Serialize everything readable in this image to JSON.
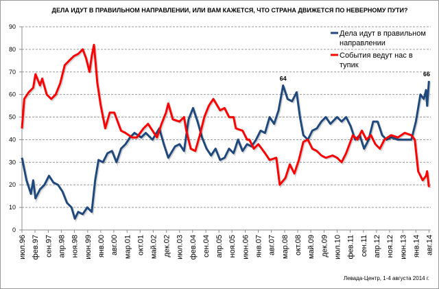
{
  "chart_data": {
    "type": "line",
    "title": "ДЕЛА ИДУТ В ПРАВИЛЬНОМ НАПРАВЛЕНИИ, ИЛИ ВАМ КАЖЕТСЯ, ЧТО СТРАНА ДВИЖЕТСЯ ПО НЕВЕРНОМУ ПУТИ?",
    "source": "Левада-Центр, 1-4 августа 2014 г.",
    "ylim": [
      0,
      90
    ],
    "yticks": [
      0,
      10,
      20,
      30,
      40,
      50,
      60,
      70,
      80,
      90
    ],
    "xlim": [
      1996.5,
      2014.6
    ],
    "xticks": [
      {
        "t": 1996.5,
        "label": "июл.96"
      },
      {
        "t": 1997.08,
        "label": "фев.97"
      },
      {
        "t": 1997.67,
        "label": "сен.97"
      },
      {
        "t": 1998.25,
        "label": "апр.98"
      },
      {
        "t": 1998.83,
        "label": "ноя.98"
      },
      {
        "t": 1999.42,
        "label": "июн.99"
      },
      {
        "t": 2000.0,
        "label": "янв.00"
      },
      {
        "t": 2000.58,
        "label": "авг.00"
      },
      {
        "t": 2001.17,
        "label": "мар.01"
      },
      {
        "t": 2001.75,
        "label": "окт.01"
      },
      {
        "t": 2002.33,
        "label": "май.02"
      },
      {
        "t": 2002.92,
        "label": "дек.02"
      },
      {
        "t": 2003.5,
        "label": "июл.03"
      },
      {
        "t": 2004.08,
        "label": "фев.04"
      },
      {
        "t": 2004.67,
        "label": "сен.04"
      },
      {
        "t": 2005.25,
        "label": "апр.05"
      },
      {
        "t": 2005.83,
        "label": "ноя.05"
      },
      {
        "t": 2006.42,
        "label": "июн.06"
      },
      {
        "t": 2007.0,
        "label": "янв.07"
      },
      {
        "t": 2007.58,
        "label": "авг.07"
      },
      {
        "t": 2008.17,
        "label": "мар.08"
      },
      {
        "t": 2008.75,
        "label": "окт.08"
      },
      {
        "t": 2009.33,
        "label": "май.09"
      },
      {
        "t": 2009.92,
        "label": "дек.09"
      },
      {
        "t": 2010.5,
        "label": "июл.10"
      },
      {
        "t": 2011.08,
        "label": "фев.11"
      },
      {
        "t": 2011.67,
        "label": "сен.11"
      },
      {
        "t": 2012.25,
        "label": "апр.12"
      },
      {
        "t": 2012.83,
        "label": "ноя.12"
      },
      {
        "t": 2013.42,
        "label": "июн.13"
      },
      {
        "t": 2014.0,
        "label": "янв.14"
      },
      {
        "t": 2014.58,
        "label": "авг.14"
      }
    ],
    "grid": true,
    "legend": "top-right",
    "annotations": [
      {
        "series": 0,
        "t": 2008.1,
        "value": 64,
        "label": "64"
      },
      {
        "series": 0,
        "t": 2014.58,
        "value": 66,
        "label": "66"
      }
    ],
    "series": [
      {
        "name": "Дела идут в правильном направлении",
        "color": "#1f497d",
        "t": [
          1996.5,
          1996.7,
          1996.9,
          1997.0,
          1997.1,
          1997.3,
          1997.5,
          1997.7,
          1997.9,
          1998.1,
          1998.3,
          1998.5,
          1998.7,
          1998.85,
          1999.0,
          1999.2,
          1999.4,
          1999.6,
          1999.75,
          1999.9,
          2000.1,
          2000.3,
          2000.5,
          2000.7,
          2000.9,
          2001.1,
          2001.3,
          2001.5,
          2001.8,
          2002.0,
          2002.3,
          2002.6,
          2002.8,
          2003.0,
          2003.3,
          2003.5,
          2003.7,
          2003.9,
          2004.1,
          2004.3,
          2004.5,
          2004.7,
          2004.9,
          2005.1,
          2005.3,
          2005.5,
          2005.7,
          2005.9,
          2006.1,
          2006.3,
          2006.5,
          2006.7,
          2006.9,
          2007.1,
          2007.3,
          2007.5,
          2007.7,
          2007.9,
          2008.1,
          2008.3,
          2008.5,
          2008.7,
          2008.85,
          2009.0,
          2009.2,
          2009.4,
          2009.6,
          2009.8,
          2010.0,
          2010.2,
          2010.5,
          2010.7,
          2010.9,
          2011.1,
          2011.3,
          2011.5,
          2011.7,
          2011.9,
          2012.1,
          2012.3,
          2012.5,
          2012.7,
          2012.9,
          2013.2,
          2013.5,
          2013.8,
          2014.0,
          2014.2,
          2014.35,
          2014.45,
          2014.5,
          2014.58
        ],
        "values": [
          32,
          22,
          16,
          22,
          14,
          18,
          20,
          24,
          21,
          20,
          17,
          12,
          10,
          5,
          8,
          7,
          10,
          8,
          22,
          31,
          30,
          34,
          35,
          30,
          36,
          38,
          41,
          43,
          41,
          43,
          40,
          45,
          38,
          32,
          37,
          38,
          35,
          49,
          54,
          48,
          41,
          36,
          33,
          36,
          31,
          32,
          36,
          34,
          40,
          35,
          38,
          37,
          40,
          44,
          43,
          50,
          47,
          53,
          64,
          58,
          57,
          61,
          50,
          42,
          40,
          44,
          45,
          48,
          50,
          47,
          50,
          48,
          50,
          46,
          40,
          42,
          36,
          40,
          48,
          48,
          42,
          40,
          41,
          40,
          40,
          40,
          48,
          60,
          58,
          62,
          55,
          66
        ]
      },
      {
        "name": "События ведут нас в тупик",
        "color": "#ff0000",
        "t": [
          1996.5,
          1996.6,
          1996.8,
          1997.0,
          1997.1,
          1997.3,
          1997.4,
          1997.6,
          1997.8,
          1998.0,
          1998.2,
          1998.4,
          1998.6,
          1998.8,
          1999.0,
          1999.2,
          1999.35,
          1999.5,
          1999.6,
          1999.7,
          1999.85,
          2000.0,
          2000.2,
          2000.4,
          2000.6,
          2000.9,
          2001.1,
          2001.4,
          2001.6,
          2001.9,
          2002.1,
          2002.3,
          2002.5,
          2002.7,
          2002.9,
          2003.0,
          2003.2,
          2003.5,
          2003.7,
          2003.8,
          2004.0,
          2004.2,
          2004.4,
          2004.6,
          2004.8,
          2005.0,
          2005.3,
          2005.5,
          2005.7,
          2005.9,
          2006.0,
          2006.3,
          2006.5,
          2006.6,
          2006.8,
          2007.0,
          2007.3,
          2007.5,
          2007.8,
          2007.95,
          2008.2,
          2008.4,
          2008.6,
          2008.8,
          2009.0,
          2009.2,
          2009.4,
          2009.6,
          2009.8,
          2010.0,
          2010.3,
          2010.5,
          2010.7,
          2010.9,
          2011.2,
          2011.4,
          2011.6,
          2011.8,
          2012.0,
          2012.2,
          2012.4,
          2012.6,
          2012.9,
          2013.2,
          2013.5,
          2013.8,
          2013.95,
          2014.1,
          2014.3,
          2014.45,
          2014.5,
          2014.58
        ],
        "values": [
          45,
          58,
          61,
          63,
          69,
          64,
          67,
          60,
          58,
          60,
          65,
          73,
          75,
          77,
          78,
          80,
          76,
          70,
          77,
          82,
          65,
          55,
          45,
          52,
          52,
          44,
          43,
          41,
          41,
          45,
          47,
          44,
          41,
          47,
          52,
          56,
          49,
          48,
          50,
          44,
          36,
          35,
          42,
          50,
          55,
          58,
          53,
          54,
          50,
          50,
          45,
          44,
          40,
          40,
          36,
          38,
          34,
          31,
          32,
          20,
          23,
          29,
          25,
          31,
          39,
          40,
          36,
          35,
          33,
          32,
          33,
          32,
          30,
          34,
          42,
          40,
          44,
          40,
          42,
          38,
          36,
          40,
          42,
          41,
          43,
          42,
          40,
          26,
          22,
          24,
          26,
          19
        ]
      }
    ]
  }
}
